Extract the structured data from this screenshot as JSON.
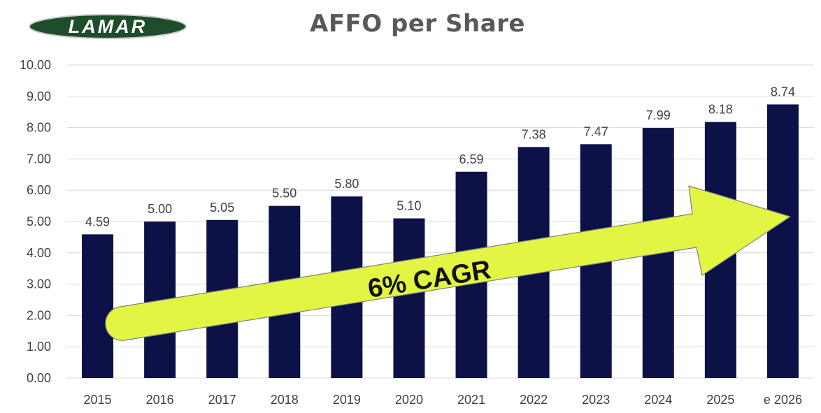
{
  "logo": {
    "text": "LAMAR",
    "background": "#1e4d2b"
  },
  "chart_data": {
    "type": "bar",
    "title": "AFFO per Share",
    "categories": [
      "2015",
      "2016",
      "2017",
      "2018",
      "2019",
      "2020",
      "2021",
      "2022",
      "2023",
      "2024",
      "2025",
      "e 2026"
    ],
    "values": [
      4.59,
      5.0,
      5.05,
      5.5,
      5.8,
      5.1,
      6.59,
      7.38,
      7.47,
      7.99,
      8.18,
      8.74
    ],
    "data_labels": [
      "4.59",
      "5.00",
      "5.05",
      "5.50",
      "5.80",
      "5.10",
      "6.59",
      "7.38",
      "7.47",
      "7.99",
      "8.18",
      "8.74"
    ],
    "y_ticks": [
      "0.00",
      "1.00",
      "2.00",
      "3.00",
      "4.00",
      "5.00",
      "6.00",
      "7.00",
      "8.00",
      "9.00",
      "10.00"
    ],
    "ylim": [
      0,
      10
    ],
    "grid": true,
    "bar_color": "#0c1248",
    "annotation": {
      "text": "6% CAGR",
      "color": "#e2f542"
    }
  }
}
